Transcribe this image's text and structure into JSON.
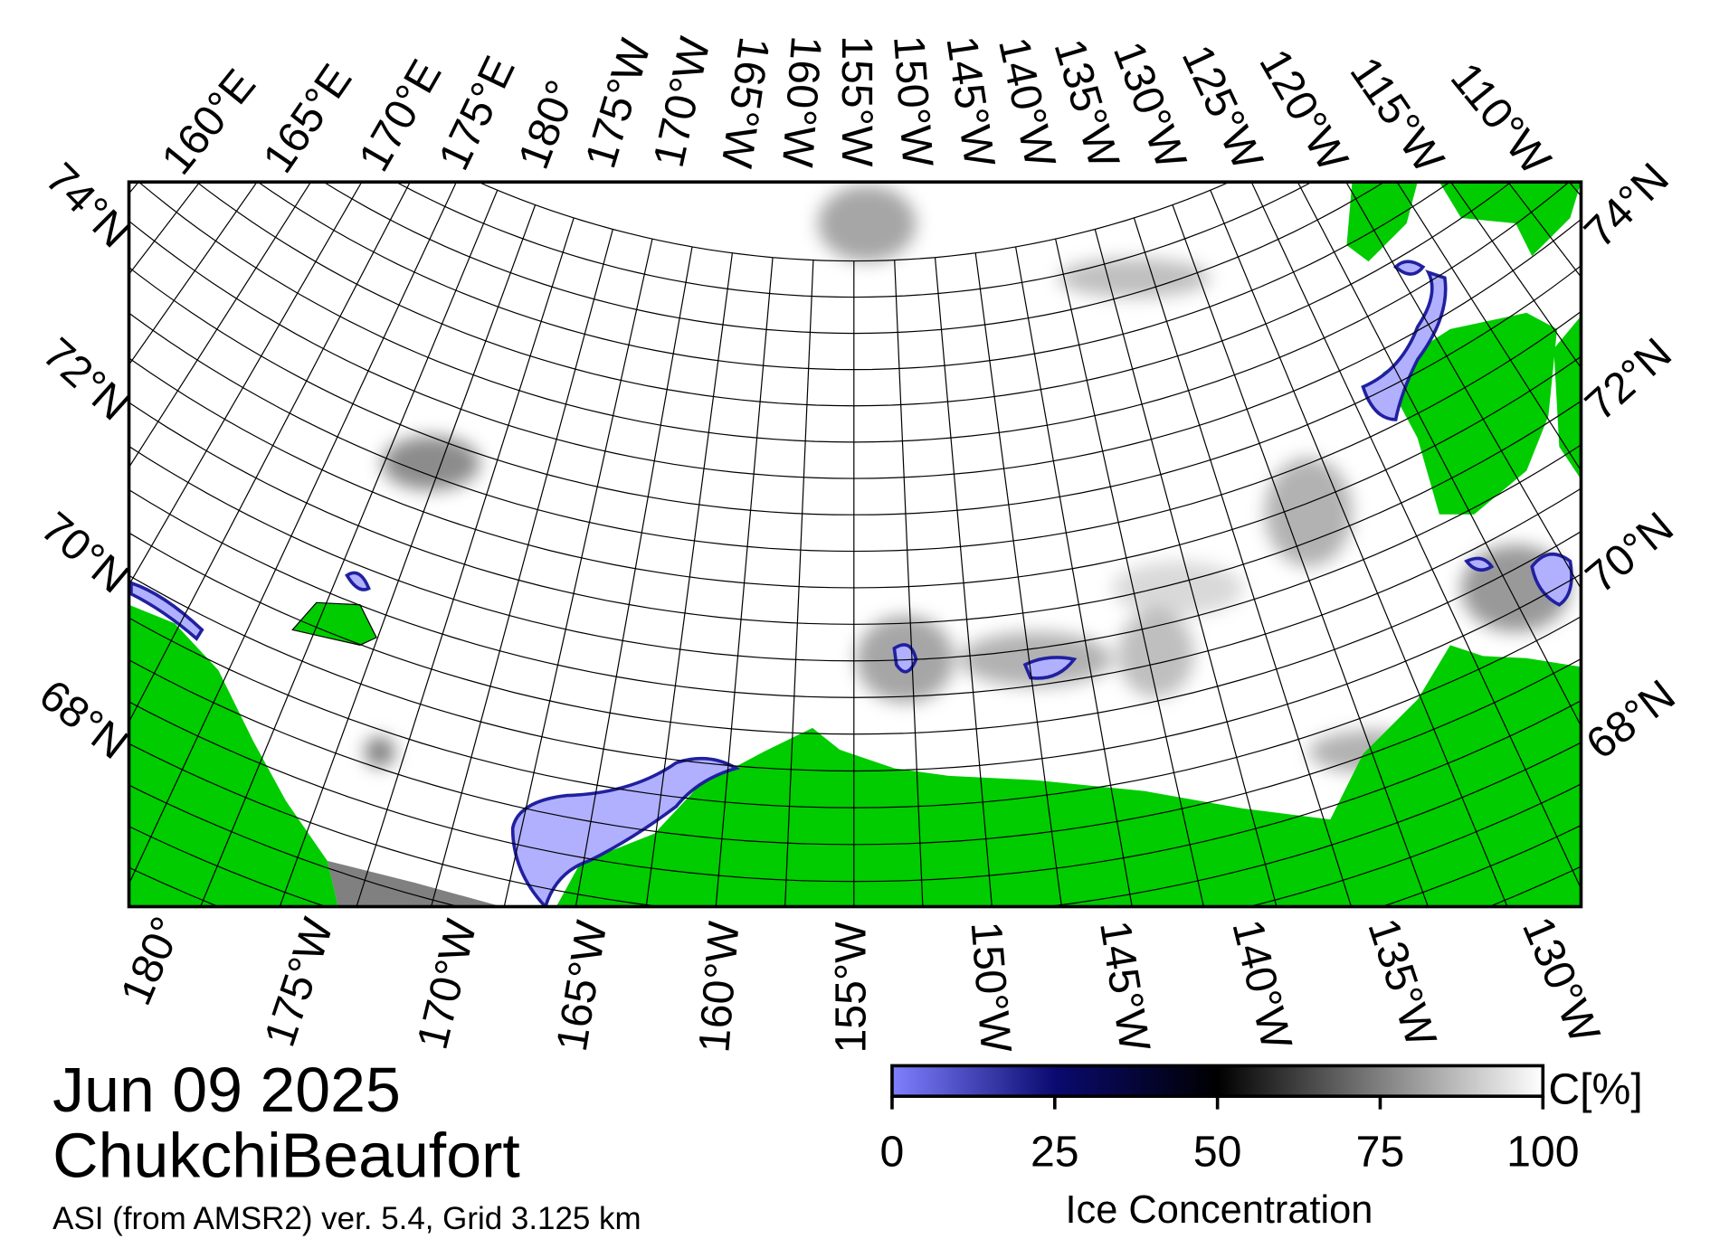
{
  "header": {
    "date": "Jun 09 2025",
    "region": "ChukchiBeaufort",
    "source": "ASI (from AMSR2) ver. 5.4,  Grid 3.125 km"
  },
  "graticule": {
    "top_labels": [
      "160°E",
      "165°E",
      "170°E",
      "175°E",
      "180°",
      "175°W",
      "170°W",
      "165°W",
      "160°W",
      "155°W",
      "150°W",
      "145°W",
      "140°W",
      "135°W",
      "130°W",
      "125°W",
      "120°W",
      "115°W",
      "110°W"
    ],
    "left_labels": [
      "74°N",
      "72°N",
      "70°N",
      "68°N"
    ],
    "right_labels": [
      "74°N",
      "72°N",
      "70°N",
      "68°N"
    ],
    "bottom_labels": [
      "180°",
      "175°W",
      "170°W",
      "165°W",
      "160°W",
      "155°W",
      "150°W",
      "145°W",
      "140°W",
      "135°W",
      "130°W"
    ]
  },
  "colorbar": {
    "ticks": [
      0,
      25,
      50,
      75,
      100
    ],
    "range": [
      0,
      100
    ],
    "label": "Ice Concentration",
    "unit": "C[%]"
  }
}
